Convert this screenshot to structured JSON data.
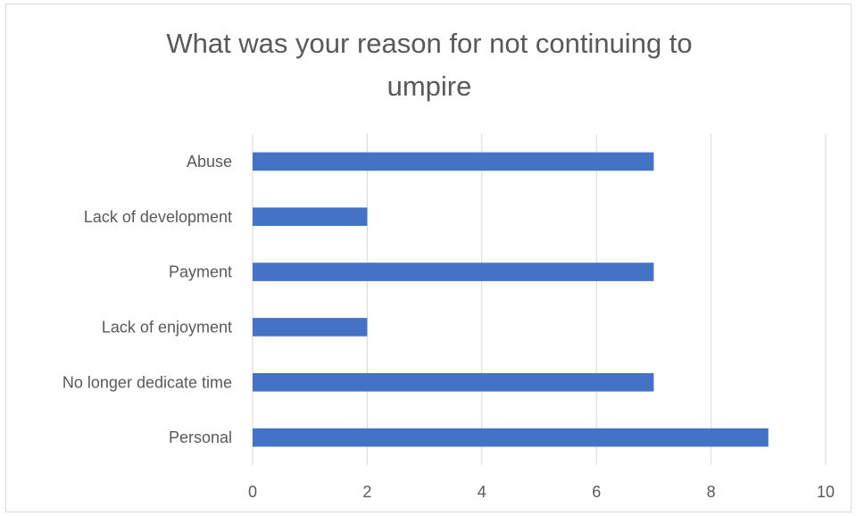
{
  "chart_data": {
    "type": "bar",
    "orientation": "horizontal",
    "title_lines": [
      "What was your reason for not continuing to",
      "umpire"
    ],
    "categories": [
      "Abuse",
      "Lack of development",
      "Payment",
      "Lack of enjoyment",
      "No longer dedicate time",
      "Personal"
    ],
    "values": [
      7,
      2,
      7,
      2,
      7,
      9
    ],
    "xlim": [
      0,
      10
    ],
    "xticks": [
      0,
      2,
      4,
      6,
      8,
      10
    ],
    "xlabel": "",
    "ylabel": "",
    "grid": true,
    "legend": "none",
    "bar_color": "#4472c4",
    "grid_color": "#d9d9d9"
  }
}
